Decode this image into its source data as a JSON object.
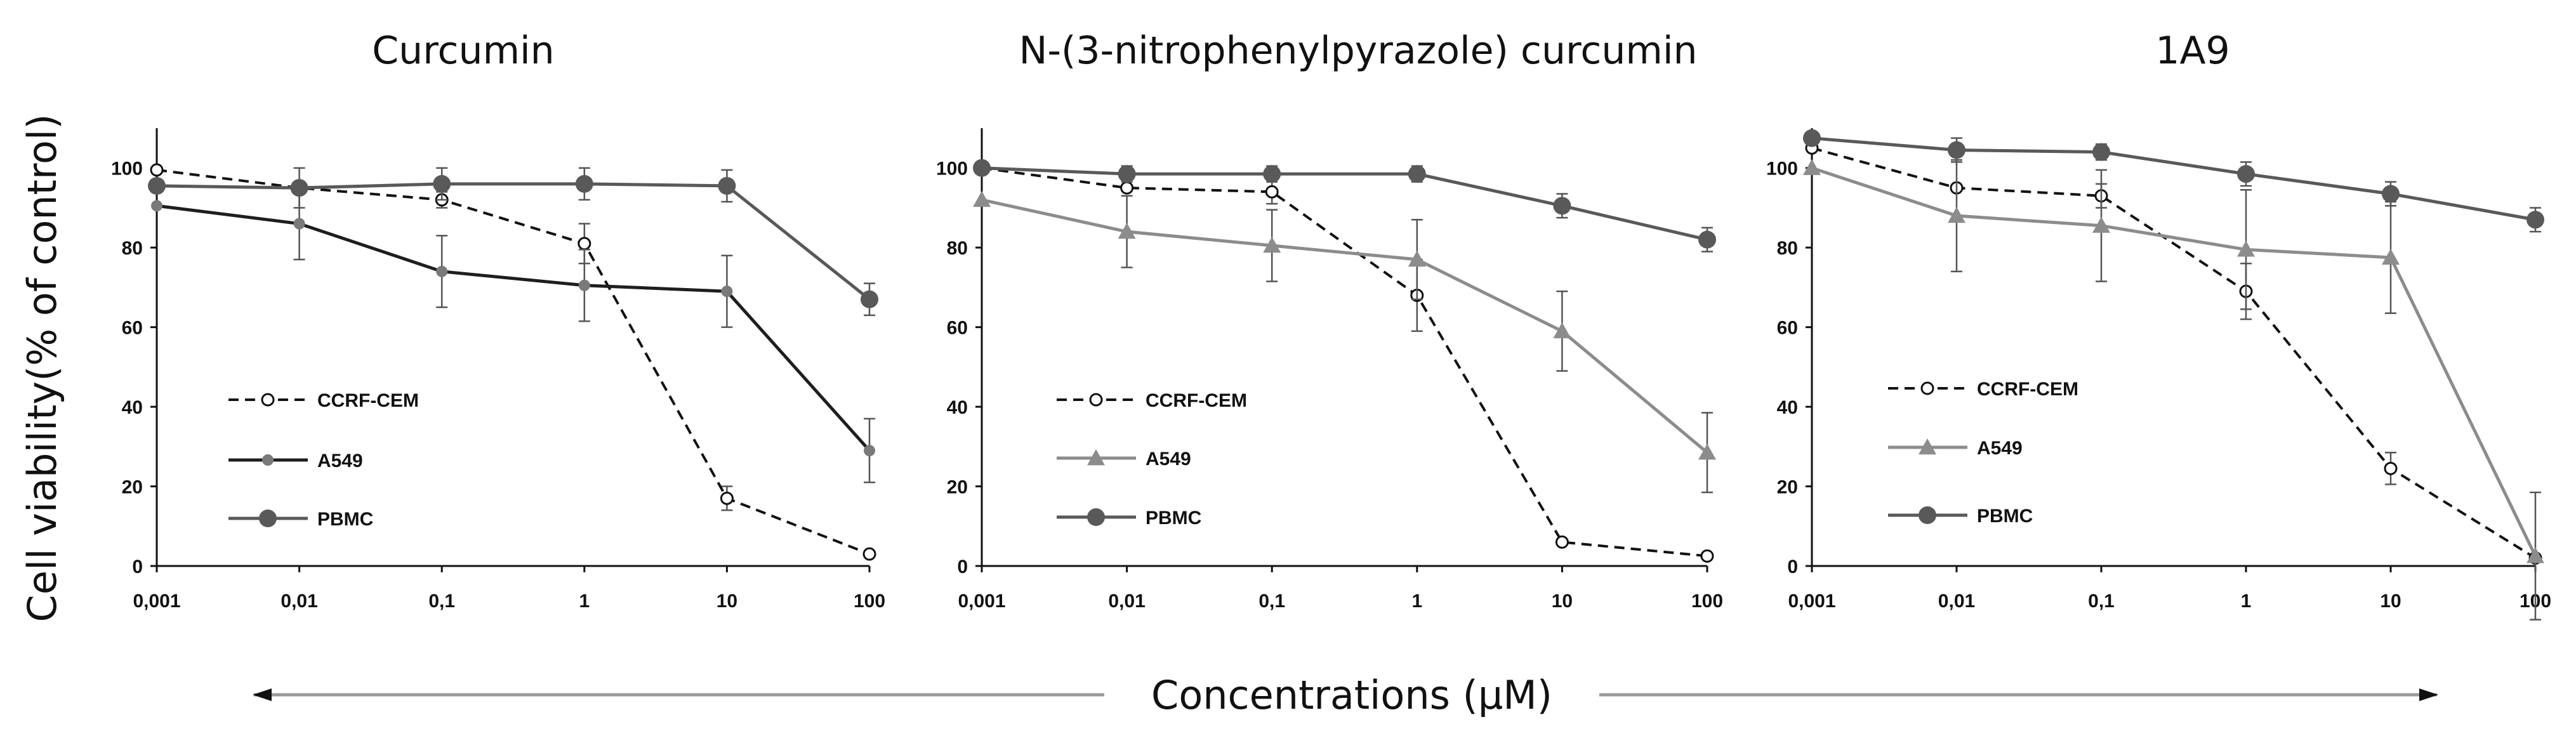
{
  "figure": {
    "ylabel": "Cell viability(% of control)",
    "xlabel": "Concentrations (µM)"
  },
  "colors": {
    "CCRF-CEM": "#111111",
    "A549_dark": "#1e1e1e",
    "A549_light": "#8c8c8c",
    "PBMC": "#595959",
    "axis": "#111111",
    "arrow": "#9a9a9a"
  },
  "chart_data": [
    {
      "type": "line",
      "title": "Curcumin",
      "x": [
        0.001,
        0.01,
        0.1,
        1,
        10,
        100
      ],
      "x_tick_labels": [
        "0,001",
        "0,01",
        "0,1",
        "1",
        "10",
        "100"
      ],
      "x_scale": "log",
      "ylim": [
        0,
        110
      ],
      "y_ticks": [
        0,
        20,
        40,
        60,
        80,
        100
      ],
      "grid": false,
      "legend_position": "left",
      "series": [
        {
          "name": "CCRF-CEM",
          "style": "dashed",
          "marker": "open-circle",
          "color": "#111111",
          "values": [
            99.5,
            95,
            92,
            81,
            17,
            3
          ],
          "errors": [
            0,
            0,
            2,
            5,
            3,
            0
          ]
        },
        {
          "name": "A549",
          "style": "solid",
          "marker": "small-circle",
          "color": "#1e1e1e",
          "values": [
            90.5,
            86,
            74,
            70.5,
            69,
            29
          ],
          "errors": [
            0,
            9,
            9,
            9,
            9,
            8
          ]
        },
        {
          "name": "PBMC",
          "style": "solid",
          "marker": "filled-circle",
          "color": "#595959",
          "values": [
            95.5,
            95,
            96,
            96,
            95.5,
            67
          ],
          "errors": [
            0,
            5,
            4,
            4,
            4,
            4
          ]
        }
      ]
    },
    {
      "type": "line",
      "title": "N-(3-nitrophenylpyrazole) curcumin",
      "x": [
        0.001,
        0.01,
        0.1,
        1,
        10,
        100
      ],
      "x_tick_labels": [
        "0,001",
        "0,01",
        "0,1",
        "1",
        "10",
        "100"
      ],
      "x_scale": "log",
      "ylim": [
        0,
        110
      ],
      "y_ticks": [
        0,
        20,
        40,
        60,
        80,
        100
      ],
      "grid": false,
      "legend_position": "left",
      "series": [
        {
          "name": "CCRF-CEM",
          "style": "dashed",
          "marker": "open-circle",
          "color": "#111111",
          "values": [
            100,
            95,
            94,
            68,
            6,
            2.5
          ],
          "errors": [
            0,
            0,
            3,
            9,
            0,
            0
          ]
        },
        {
          "name": "A549",
          "style": "solid",
          "marker": "triangle",
          "color": "#8c8c8c",
          "values": [
            92,
            84,
            80.5,
            77,
            59,
            28.5
          ],
          "errors": [
            0,
            9,
            9,
            10,
            10,
            10
          ]
        },
        {
          "name": "PBMC",
          "style": "solid",
          "marker": "filled-circle",
          "color": "#595959",
          "values": [
            100,
            98.5,
            98.5,
            98.5,
            90.5,
            82
          ],
          "errors": [
            0,
            2,
            2,
            2,
            3,
            3
          ]
        }
      ]
    },
    {
      "type": "line",
      "title": "1A9",
      "x": [
        0.001,
        0.01,
        0.1,
        1,
        10,
        100
      ],
      "x_tick_labels": [
        "0,001",
        "0,01",
        "0,1",
        "1",
        "10",
        "100"
      ],
      "x_scale": "log",
      "ylim": [
        0,
        110
      ],
      "y_ticks": [
        0,
        20,
        40,
        60,
        80,
        100
      ],
      "grid": false,
      "legend_position": "left",
      "series": [
        {
          "name": "CCRF-CEM",
          "style": "dashed",
          "marker": "open-circle",
          "color": "#111111",
          "values": [
            105,
            95,
            93,
            69,
            24.5,
            2
          ],
          "errors": [
            0,
            0,
            3,
            7,
            4,
            0
          ]
        },
        {
          "name": "A549",
          "style": "solid",
          "marker": "triangle",
          "color": "#8c8c8c",
          "values": [
            100,
            88,
            85.5,
            79.5,
            77.5,
            2.5
          ],
          "errors": [
            0,
            14,
            14,
            15,
            14,
            16
          ]
        },
        {
          "name": "PBMC",
          "style": "solid",
          "marker": "filled-circle",
          "color": "#595959",
          "values": [
            107.5,
            104.5,
            104,
            98.5,
            93.5,
            87
          ],
          "errors": [
            0,
            3,
            2,
            3,
            3,
            3
          ]
        }
      ]
    }
  ]
}
